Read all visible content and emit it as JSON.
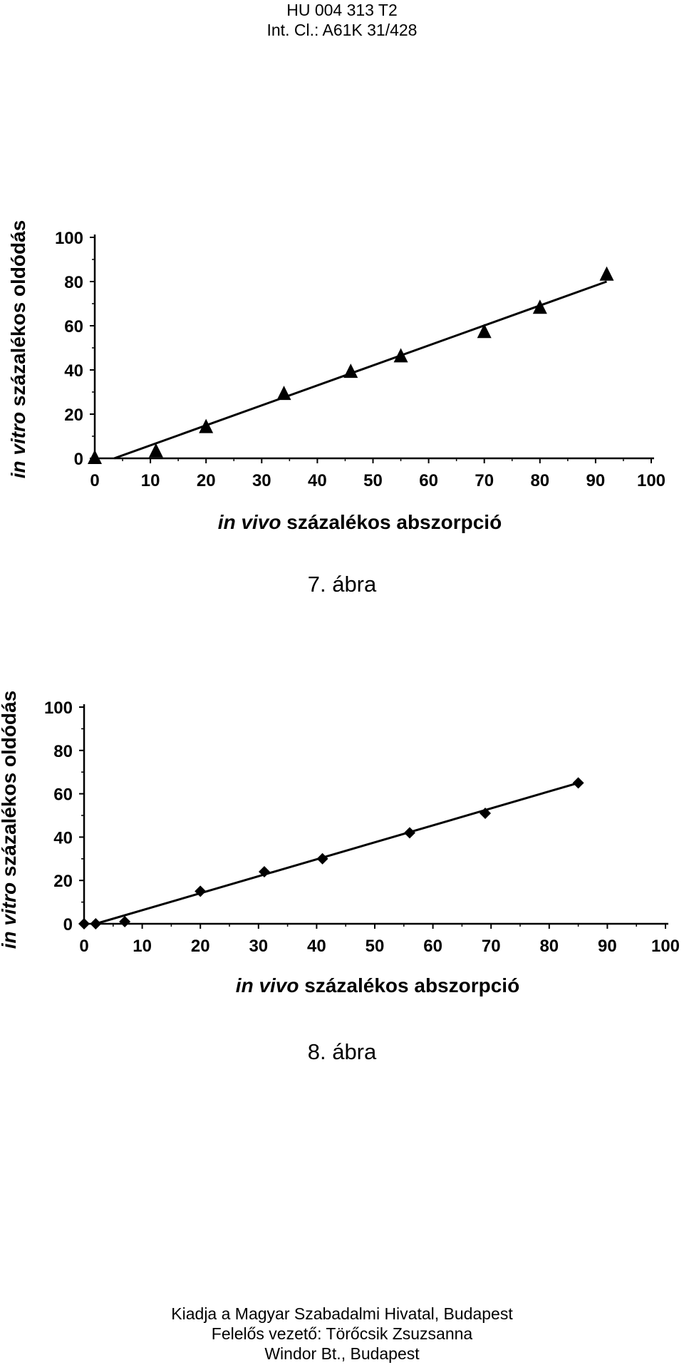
{
  "header": {
    "doc_number": "HU 004 313 T2",
    "classification": "Int. Cl.: A61K 31/428"
  },
  "chart_data": [
    {
      "type": "scatter",
      "marker": "triangle",
      "caption": "7. ábra",
      "xlabel_italic": "in vivo",
      "xlabel_rest": " százalékos abszorpció",
      "ylabel_italic": "in vitro",
      "ylabel_rest": " százalékos oldódás",
      "xlim": [
        0,
        100
      ],
      "ylim": [
        0,
        100
      ],
      "xticks": [
        "0",
        "10",
        "20",
        "30",
        "40",
        "50",
        "60",
        "70",
        "80",
        "90",
        "100"
      ],
      "yticks": [
        "0",
        "20",
        "40",
        "60",
        "80",
        "100"
      ],
      "x": [
        0,
        11,
        20,
        34,
        46,
        55,
        70,
        80,
        92
      ],
      "y": [
        0,
        3,
        14,
        29,
        39,
        46,
        57,
        68,
        83
      ],
      "trendline": {
        "x": [
          3.5,
          92
        ],
        "y": [
          0,
          80
        ]
      }
    },
    {
      "type": "scatter",
      "marker": "diamond",
      "caption": "8. ábra",
      "xlabel_italic": "in vivo",
      "xlabel_rest": " százalékos abszorpció",
      "ylabel_italic": "in vitro",
      "ylabel_rest": " százalékos oldódás",
      "xlim": [
        0,
        100
      ],
      "ylim": [
        0,
        100
      ],
      "xticks": [
        "0",
        "10",
        "20",
        "30",
        "40",
        "50",
        "60",
        "70",
        "80",
        "90",
        "100"
      ],
      "yticks": [
        "0",
        "20",
        "40",
        "60",
        "80",
        "100"
      ],
      "x": [
        0,
        2,
        7,
        20,
        31,
        41,
        56,
        69,
        85
      ],
      "y": [
        0,
        0,
        1,
        15,
        24,
        30,
        42,
        51,
        65
      ],
      "trendline": {
        "x": [
          2,
          85
        ],
        "y": [
          0,
          65
        ]
      }
    }
  ],
  "footer": {
    "line1": "Kiadja a Magyar Szabadalmi Hivatal, Budapest",
    "line2": "Felelős vezető: Törőcsik Zsuzsanna",
    "line3": "Windor Bt., Budapest"
  }
}
